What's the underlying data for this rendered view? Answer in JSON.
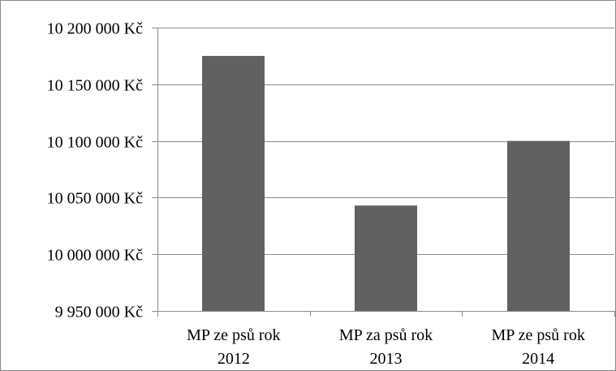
{
  "chart_data": {
    "type": "bar",
    "title": "",
    "xlabel": "",
    "ylabel": "",
    "categories": [
      [
        "MP ze psů rok",
        "2012"
      ],
      [
        "MP za psů rok",
        "2013"
      ],
      [
        "MP ze psů rok",
        "2014"
      ]
    ],
    "values": [
      10175000,
      10043000,
      10100000
    ],
    "ylim": [
      9950000,
      10200000
    ],
    "yticks": [
      9950000,
      10000000,
      10050000,
      10100000,
      10150000,
      10200000
    ],
    "ytick_labels": [
      "9 950 000 Kč",
      "10 000 000 Kč",
      "10 050 000 Kč",
      "10 100 000 Kč",
      "10 150 000 Kč",
      "10 200 000 Kč"
    ],
    "grid": true,
    "legend": "none",
    "colors": {
      "bar": "#616161",
      "gridline": "#8c8c8c",
      "axis": "#8c8c8c",
      "text": "#000000"
    }
  }
}
